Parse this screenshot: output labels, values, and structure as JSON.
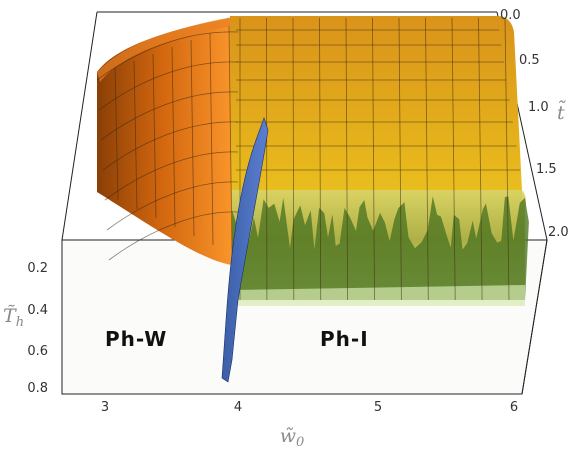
{
  "chart_data": {
    "type": "surface3d",
    "axes": {
      "x": {
        "symbol": "w̃",
        "subscript": "0",
        "ticks": [
          "3",
          "4",
          "5",
          "6"
        ],
        "range": [
          2.7,
          6.1
        ]
      },
      "z": {
        "symbol": "T̃",
        "subscript": "h",
        "ticks": [
          "0.2",
          "0.4",
          "0.6",
          "0.8"
        ],
        "range": [
          0.1,
          0.8
        ]
      },
      "y": {
        "symbol": "t̃",
        "ticks": [
          "0.0",
          "0.5",
          "1.0",
          "1.5",
          "2.0"
        ],
        "range": [
          0.0,
          2.0
        ]
      }
    },
    "regions": [
      {
        "label": "Ph-W",
        "color": "#e8761a",
        "w0_range": [
          2.7,
          3.9
        ]
      },
      {
        "label": "Ph-I",
        "color": "#e8c21c",
        "w0_range": [
          3.9,
          6.1
        ]
      }
    ],
    "boundary_surface_color": "#3c5ea8",
    "boundary_w0": 3.9
  }
}
